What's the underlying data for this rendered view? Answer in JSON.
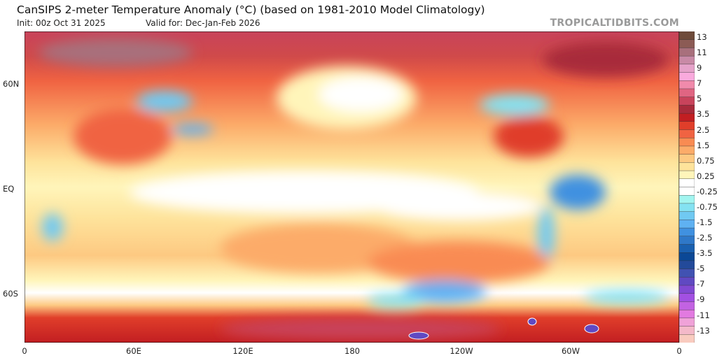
{
  "header": {
    "title": "CanSIPS 2-meter Temperature Anomaly (°C) (based on 1981-2010 Model Climatology)",
    "init": "Init: 00z Oct 31 2025",
    "valid": "Valid for: Dec-Jan-Feb 2026",
    "brand": "TROPICALTIDBITS.COM"
  },
  "map": {
    "projection": "equirectangular, centered on 180",
    "lat_labels": [
      "60N",
      "EQ",
      "60S"
    ],
    "lon_labels": [
      "0",
      "60E",
      "120E",
      "180",
      "120W",
      "60W",
      "0"
    ]
  },
  "colorbar": {
    "unit": "°C",
    "labels": [
      "13",
      "11",
      "9",
      "7",
      "5",
      "3.5",
      "2.5",
      "1.5",
      "0.75",
      "0.25",
      "-0.25",
      "-0.75",
      "-1.5",
      "-2.5",
      "-3.5",
      "-5",
      "-7",
      "-9",
      "-11",
      "-13"
    ],
    "colors": [
      "#6e4b3a",
      "#8c5b55",
      "#a8707c",
      "#c88aa6",
      "#e5a2c9",
      "#f9aadd",
      "#f08aab",
      "#e06582",
      "#c8435b",
      "#a82a3b",
      "#c21e22",
      "#e03e2a",
      "#f06342",
      "#f98b52",
      "#fcab69",
      "#fdc982",
      "#fee39b",
      "#fff5ba",
      "#ffffff",
      "#ffffff",
      "#a2f5f0",
      "#84e2f2",
      "#70c9f2",
      "#5fb1f2",
      "#4091e0",
      "#2f78c8",
      "#1a60b0",
      "#0b4896",
      "#234a9a",
      "#4152b2",
      "#6049c2",
      "#8149d2",
      "#a250e2",
      "#c262e2",
      "#e27ae0",
      "#f0a2d8",
      "#f4b9c9",
      "#f9cbbf"
    ]
  }
}
